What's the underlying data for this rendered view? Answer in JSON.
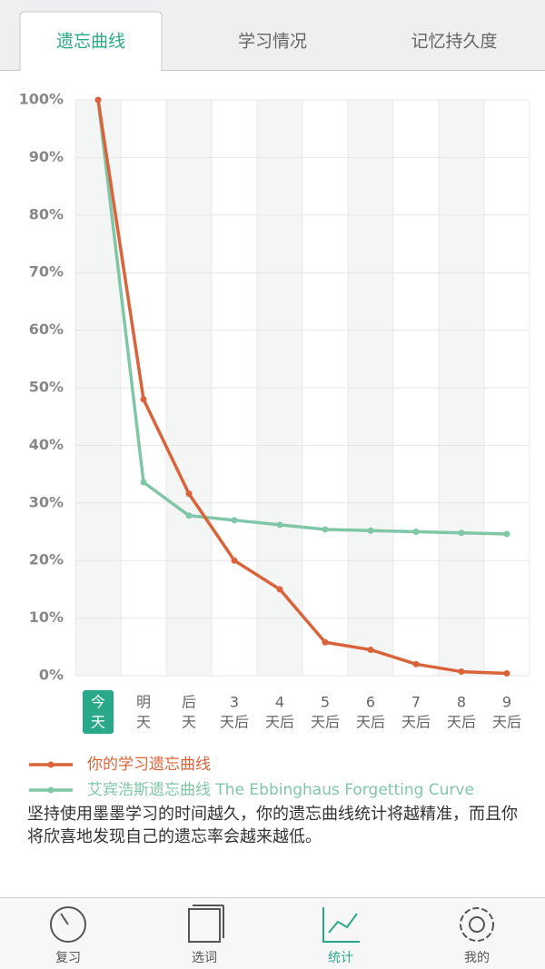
{
  "tabs": [
    "遗忘曲线",
    "学习情况",
    "记忆持久度"
  ],
  "chart_data": {
    "type": "line",
    "categories": [
      [
        "今",
        "天"
      ],
      [
        "明",
        "天"
      ],
      [
        "后",
        "天"
      ],
      [
        "3",
        "天后"
      ],
      [
        "4",
        "天后"
      ],
      [
        "5",
        "天后"
      ],
      [
        "6",
        "天后"
      ],
      [
        "7",
        "天后"
      ],
      [
        "8",
        "天后"
      ],
      [
        "9",
        "天后"
      ]
    ],
    "series": [
      {
        "name": "你的学习遗忘曲线",
        "color": "#d9643b",
        "values": [
          100,
          48,
          31.6,
          20,
          15,
          5.8,
          4.5,
          2,
          0.7,
          0.4
        ]
      },
      {
        "name": "艾宾浩斯遗忘曲线 The Ebbinghaus Forgetting Curve",
        "color": "#80c7a8",
        "values": [
          100,
          33.6,
          27.8,
          27,
          26.2,
          25.4,
          25.2,
          25,
          24.8,
          24.6
        ]
      }
    ],
    "ylim": [
      0,
      100
    ],
    "yticks": [
      {
        "value": 0,
        "label": "0%"
      },
      {
        "value": 10,
        "label": "10%"
      },
      {
        "value": 20,
        "label": "20%"
      },
      {
        "value": 30,
        "label": "30%"
      },
      {
        "value": 40,
        "label": "40%"
      },
      {
        "value": 50,
        "label": "50%"
      },
      {
        "value": 60,
        "label": "60%"
      },
      {
        "value": 70,
        "label": "70%"
      },
      {
        "value": 80,
        "label": "80%"
      },
      {
        "value": 90,
        "label": "90%"
      },
      {
        "value": 100,
        "label": "100%"
      }
    ],
    "grid": true
  },
  "description": "坚持使用墨墨学习的时间越久，你的遗忘曲线统计将越精准，而且你将欣喜地发现自己的遗忘率会越来越低。",
  "nav": [
    "复习",
    "选词",
    "统计",
    "我的"
  ]
}
